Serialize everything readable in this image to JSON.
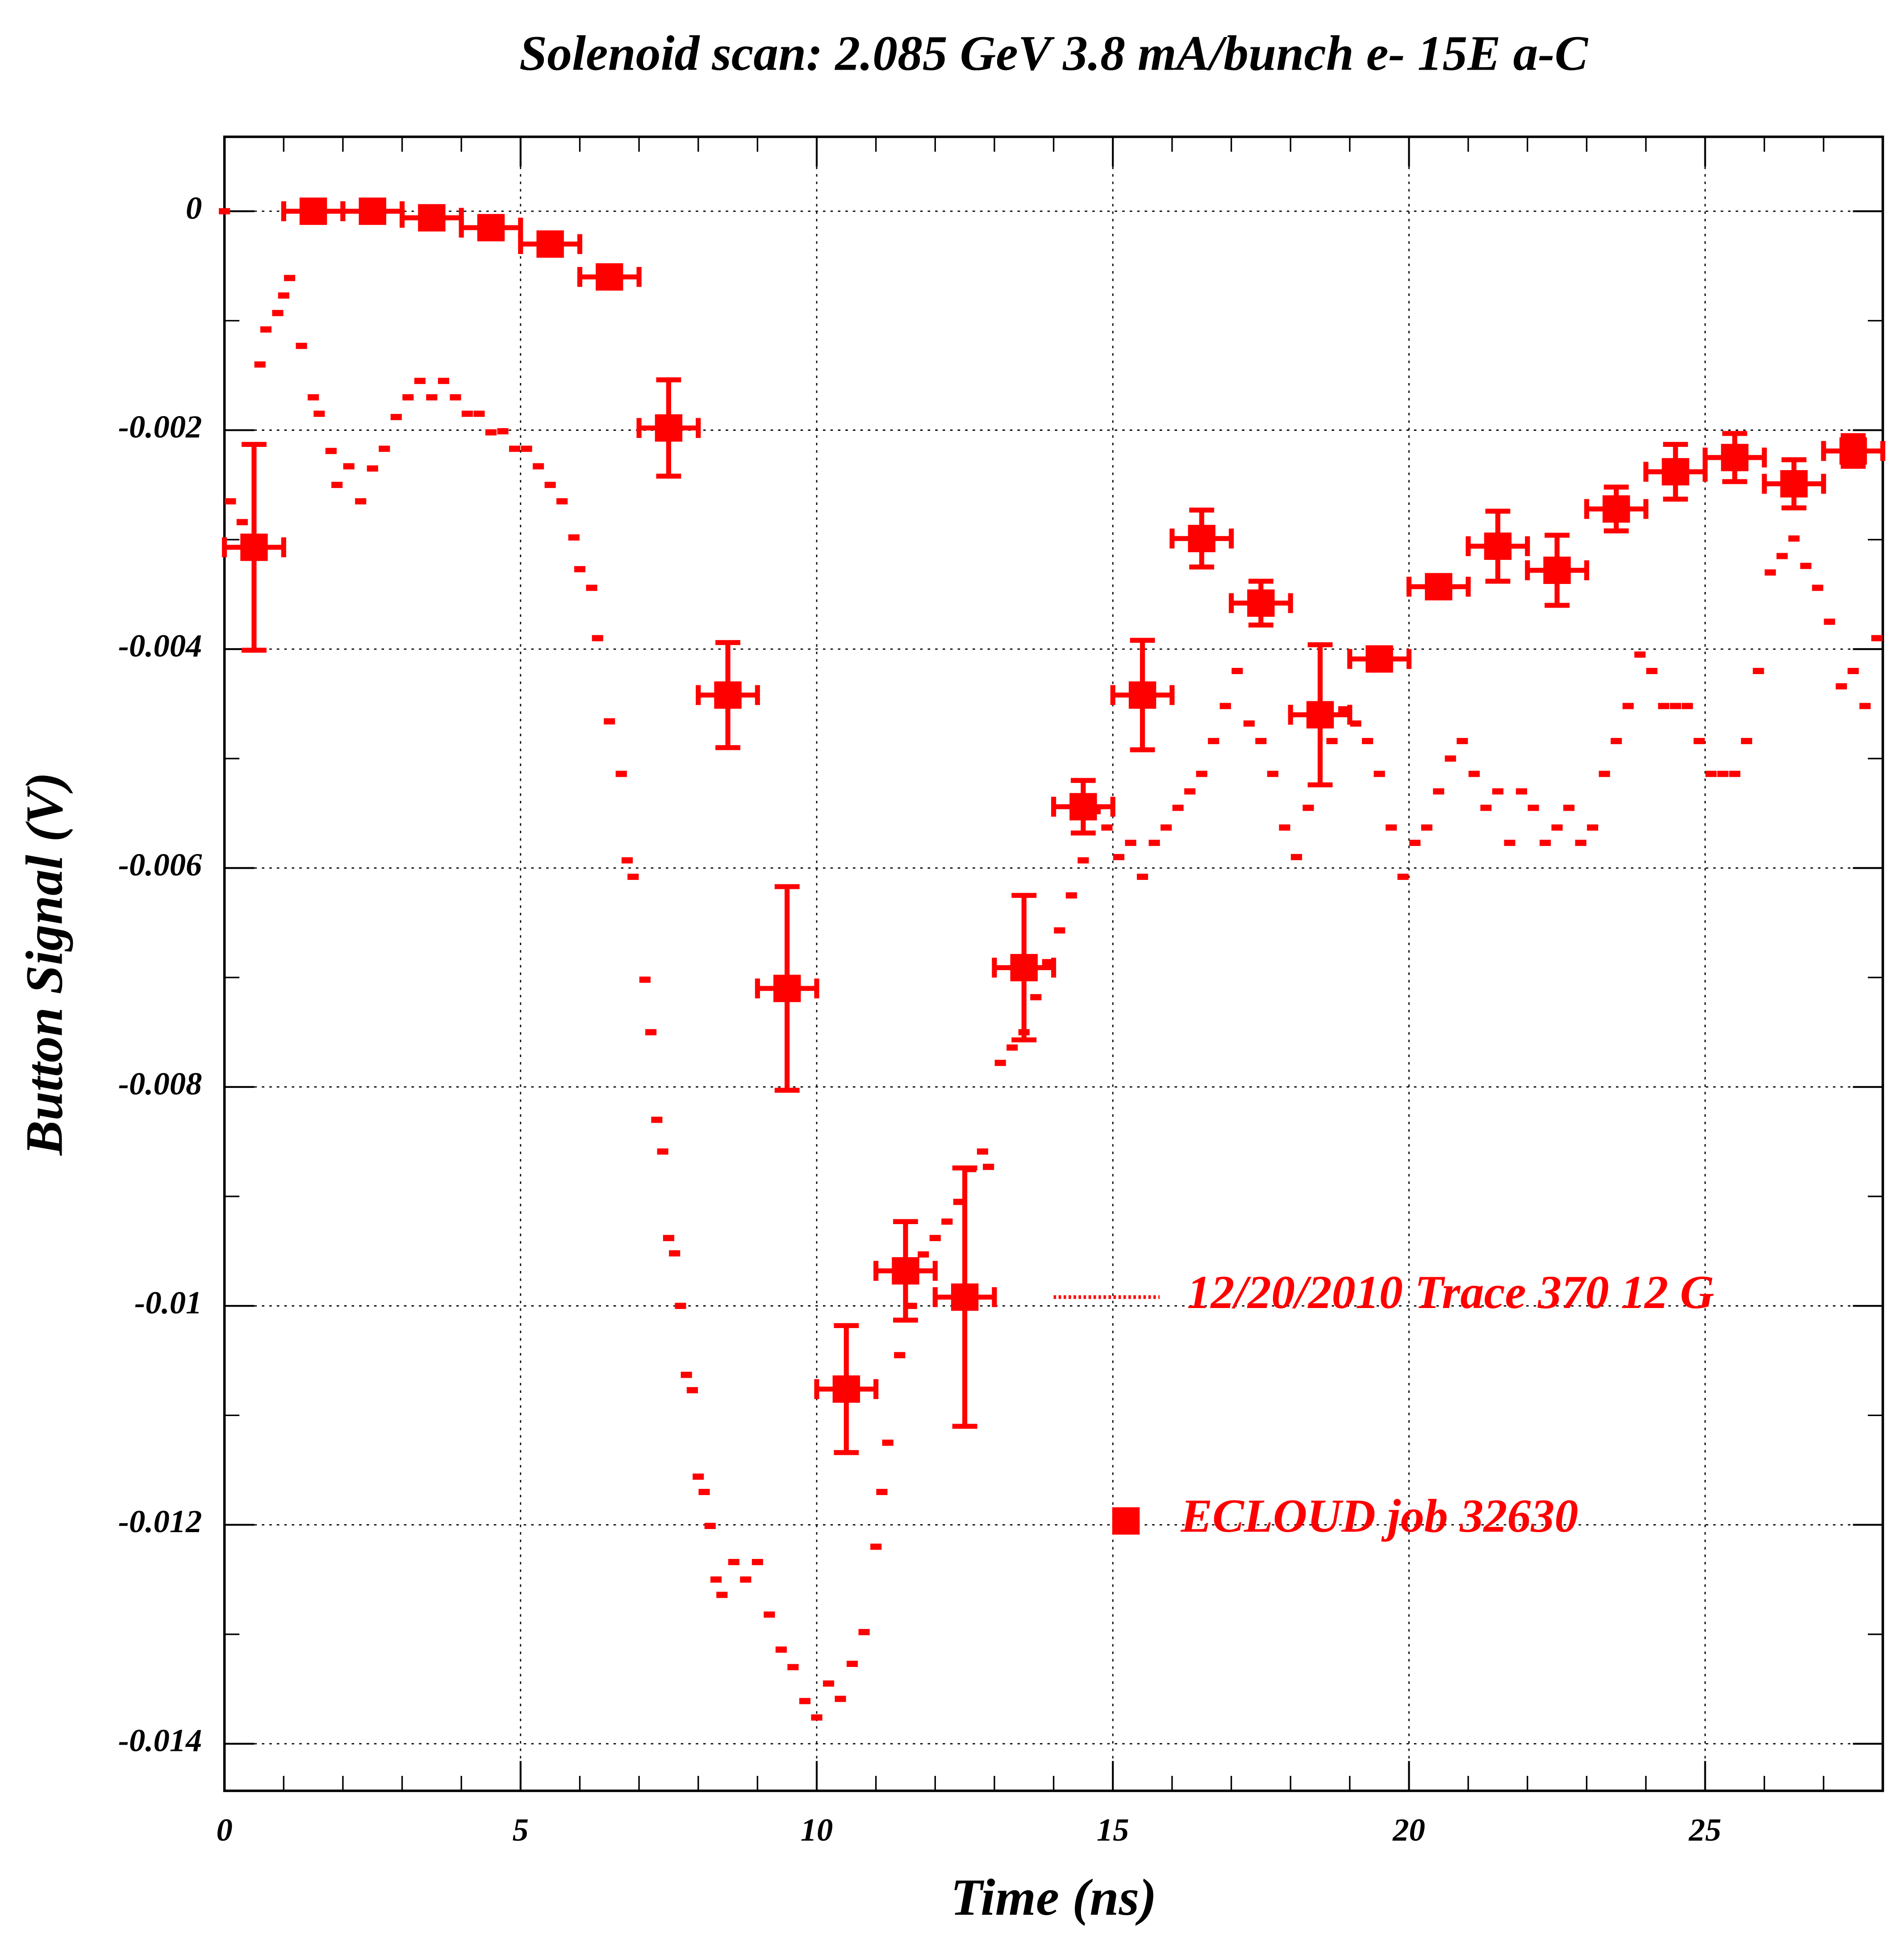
{
  "chart_data": {
    "type": "scatter",
    "title": "Solenoid scan: 2.085 GeV 3.8 mA/bunch e- 15E a-C",
    "x_label": "Time (ns)",
    "y_label": "Button Signal (V)",
    "xlim": [
      0,
      28
    ],
    "ylim": [
      -0.01443,
      0.00068
    ],
    "xticks": [
      0,
      5,
      10,
      15,
      20,
      25
    ],
    "yticks": [
      0,
      -0.002,
      -0.004,
      -0.006,
      -0.008,
      -0.01,
      -0.012,
      -0.014
    ],
    "grid": true,
    "series": [
      {
        "name": "12/20/2010 Trace 370  12 G",
        "color": "#ff0000",
        "style": "dots",
        "x": [
          0,
          0.1,
          0.3,
          0.6,
          0.7,
          0.9,
          1.0,
          1.1,
          1.3,
          1.5,
          1.6,
          1.8,
          1.9,
          2.1,
          2.3,
          2.5,
          2.7,
          2.9,
          3.1,
          3.3,
          3.5,
          3.7,
          3.9,
          4.1,
          4.3,
          4.5,
          4.7,
          4.9,
          5.1,
          5.3,
          5.5,
          5.7,
          5.9,
          6.0,
          6.2,
          6.3,
          6.5,
          6.7,
          6.8,
          6.9,
          7.1,
          7.2,
          7.3,
          7.4,
          7.5,
          7.6,
          7.7,
          7.8,
          7.9,
          8.0,
          8.1,
          8.2,
          8.3,
          8.4,
          8.6,
          8.8,
          9.0,
          9.2,
          9.4,
          9.6,
          9.8,
          10.0,
          10.2,
          10.4,
          10.6,
          10.8,
          11.0,
          11.1,
          11.2,
          11.4,
          11.6,
          11.8,
          12.0,
          12.2,
          12.4,
          12.6,
          12.8,
          12.9,
          13.1,
          13.3,
          13.5,
          13.7,
          13.9,
          14.1,
          14.3,
          14.5,
          14.7,
          14.9,
          15.1,
          15.3,
          15.5,
          15.7,
          15.9,
          16.1,
          16.3,
          16.5,
          16.7,
          16.9,
          17.1,
          17.3,
          17.5,
          17.7,
          17.9,
          18.1,
          18.3,
          18.5,
          18.7,
          18.9,
          19.1,
          19.3,
          19.5,
          19.7,
          19.9,
          20.1,
          20.3,
          20.5,
          20.7,
          20.9,
          21.1,
          21.3,
          21.5,
          21.7,
          21.9,
          22.1,
          22.3,
          22.5,
          22.7,
          22.9,
          23.1,
          23.3,
          23.5,
          23.7,
          23.9,
          24.1,
          24.3,
          24.5,
          24.7,
          24.9,
          25.1,
          25.3,
          25.5,
          25.7,
          25.9,
          26.1,
          26.3,
          26.5,
          26.7,
          26.9,
          27.1,
          27.3,
          27.5,
          27.7,
          27.9
        ],
        "values": [
          0,
          -0.00265,
          -0.00284,
          -0.0014,
          -0.00108,
          -0.00093,
          -0.00077,
          -0.00061,
          -0.00123,
          -0.0017,
          -0.00185,
          -0.00219,
          -0.0025,
          -0.00233,
          -0.00265,
          -0.00235,
          -0.00217,
          -0.00188,
          -0.0017,
          -0.00155,
          -0.0017,
          -0.00155,
          -0.0017,
          -0.00185,
          -0.00185,
          -0.00202,
          -0.00201,
          -0.00217,
          -0.00217,
          -0.00233,
          -0.0025,
          -0.00265,
          -0.00298,
          -0.00327,
          -0.00344,
          -0.0039,
          -0.00466,
          -0.00514,
          -0.00593,
          -0.00608,
          -0.00702,
          -0.0075,
          -0.0083,
          -0.00859,
          -0.00938,
          -0.00952,
          -0.01,
          -0.01063,
          -0.01077,
          -0.01156,
          -0.0117,
          -0.01201,
          -0.0125,
          -0.01264,
          -0.01234,
          -0.0125,
          -0.01234,
          -0.01282,
          -0.01314,
          -0.0133,
          -0.01361,
          -0.01376,
          -0.01345,
          -0.01359,
          -0.01327,
          -0.01298,
          -0.0122,
          -0.0117,
          -0.01125,
          -0.01045,
          -0.01,
          -0.00953,
          -0.00938,
          -0.00923,
          -0.00905,
          -0.00875,
          -0.00859,
          -0.00873,
          -0.00778,
          -0.00764,
          -0.0075,
          -0.00718,
          -0.00686,
          -0.00657,
          -0.00625,
          -0.00593,
          -0.00548,
          -0.00563,
          -0.0059,
          -0.00577,
          -0.00608,
          -0.00577,
          -0.00563,
          -0.00545,
          -0.0053,
          -0.00514,
          -0.00484,
          -0.00452,
          -0.0042,
          -0.00468,
          -0.00484,
          -0.00514,
          -0.00563,
          -0.0059,
          -0.00545,
          -0.00452,
          -0.00484,
          -0.00455,
          -0.00468,
          -0.00484,
          -0.00514,
          -0.00563,
          -0.00608,
          -0.00577,
          -0.00563,
          -0.0053,
          -0.005,
          -0.00484,
          -0.00514,
          -0.00545,
          -0.0053,
          -0.00577,
          -0.0053,
          -0.00545,
          -0.00577,
          -0.00563,
          -0.00545,
          -0.00577,
          -0.00563,
          -0.00514,
          -0.00484,
          -0.00452,
          -0.00405,
          -0.0042,
          -0.00452,
          -0.00452,
          -0.00452,
          -0.00484,
          -0.00514,
          -0.00514,
          -0.00514,
          -0.00484,
          -0.0042,
          -0.0033,
          -0.00315,
          -0.00299,
          -0.00324,
          -0.00344,
          -0.00375,
          -0.00434,
          -0.0042,
          -0.00452,
          -0.0039
        ]
      },
      {
        "name": "ECLOUD job 32630",
        "color": "#ff0000",
        "style": "errorbars",
        "xerror": 0.5,
        "x": [
          0.5,
          1.5,
          2.5,
          3.5,
          4.5,
          5.5,
          6.5,
          7.5,
          8.5,
          9.5,
          10.5,
          11.5,
          12.5,
          13.5,
          14.5,
          15.5,
          16.5,
          17.5,
          18.5,
          19.5,
          20.5,
          21.5,
          22.5,
          23.5,
          24.5,
          25.5,
          26.5,
          27.5
        ],
        "values": [
          -0.00307,
          0,
          0,
          -6e-05,
          -0.00015,
          -0.0003,
          -0.0006,
          -0.00198,
          -0.00442,
          -0.0071,
          -0.01076,
          -0.00968,
          -0.00992,
          -0.00691,
          -0.00544,
          -0.00442,
          -0.00299,
          -0.00358,
          -0.0046,
          -0.00409,
          -0.00343,
          -0.00306,
          -0.00328,
          -0.00272,
          -0.00238,
          -0.00225,
          -0.00249,
          -0.00219
        ],
        "errors": [
          0.00094,
          0,
          0,
          0,
          0,
          0,
          0,
          0.00044,
          0.00048,
          0.00093,
          0.00058,
          0.00045,
          0.00118,
          0.00066,
          0.00024,
          0.0005,
          0.00026,
          0.0002,
          0.00064,
          0.0001,
          0.0001,
          0.00032,
          0.00032,
          0.0002,
          0.00025,
          0.00022,
          0.00022,
          0.00014
        ]
      }
    ]
  }
}
